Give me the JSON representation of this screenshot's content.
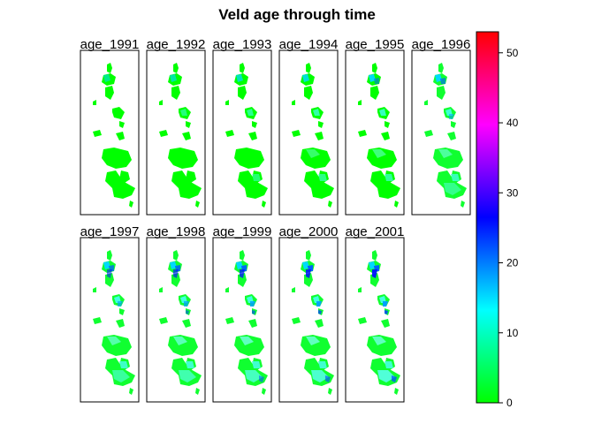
{
  "chart_data": {
    "type": "heatmap",
    "title": "Veld age through time",
    "panels": [
      {
        "label": "age_1991",
        "stage": 0.0
      },
      {
        "label": "age_1992",
        "stage": 0.1
      },
      {
        "label": "age_1993",
        "stage": 0.2
      },
      {
        "label": "age_1994",
        "stage": 0.3
      },
      {
        "label": "age_1995",
        "stage": 0.4
      },
      {
        "label": "age_1996",
        "stage": 0.5
      },
      {
        "label": "age_1997",
        "stage": 0.6
      },
      {
        "label": "age_1998",
        "stage": 0.7
      },
      {
        "label": "age_1999",
        "stage": 0.8
      },
      {
        "label": "age_2000",
        "stage": 0.9
      },
      {
        "label": "age_2001",
        "stage": 1.0
      }
    ],
    "legend": {
      "min": 0,
      "max": 53,
      "ticks": [
        0,
        10,
        20,
        30,
        40,
        50
      ],
      "colors": [
        "#00ff00",
        "#00ffff",
        "#0000ff",
        "#ff00ff",
        "#ff0000"
      ],
      "placement": "right"
    }
  }
}
